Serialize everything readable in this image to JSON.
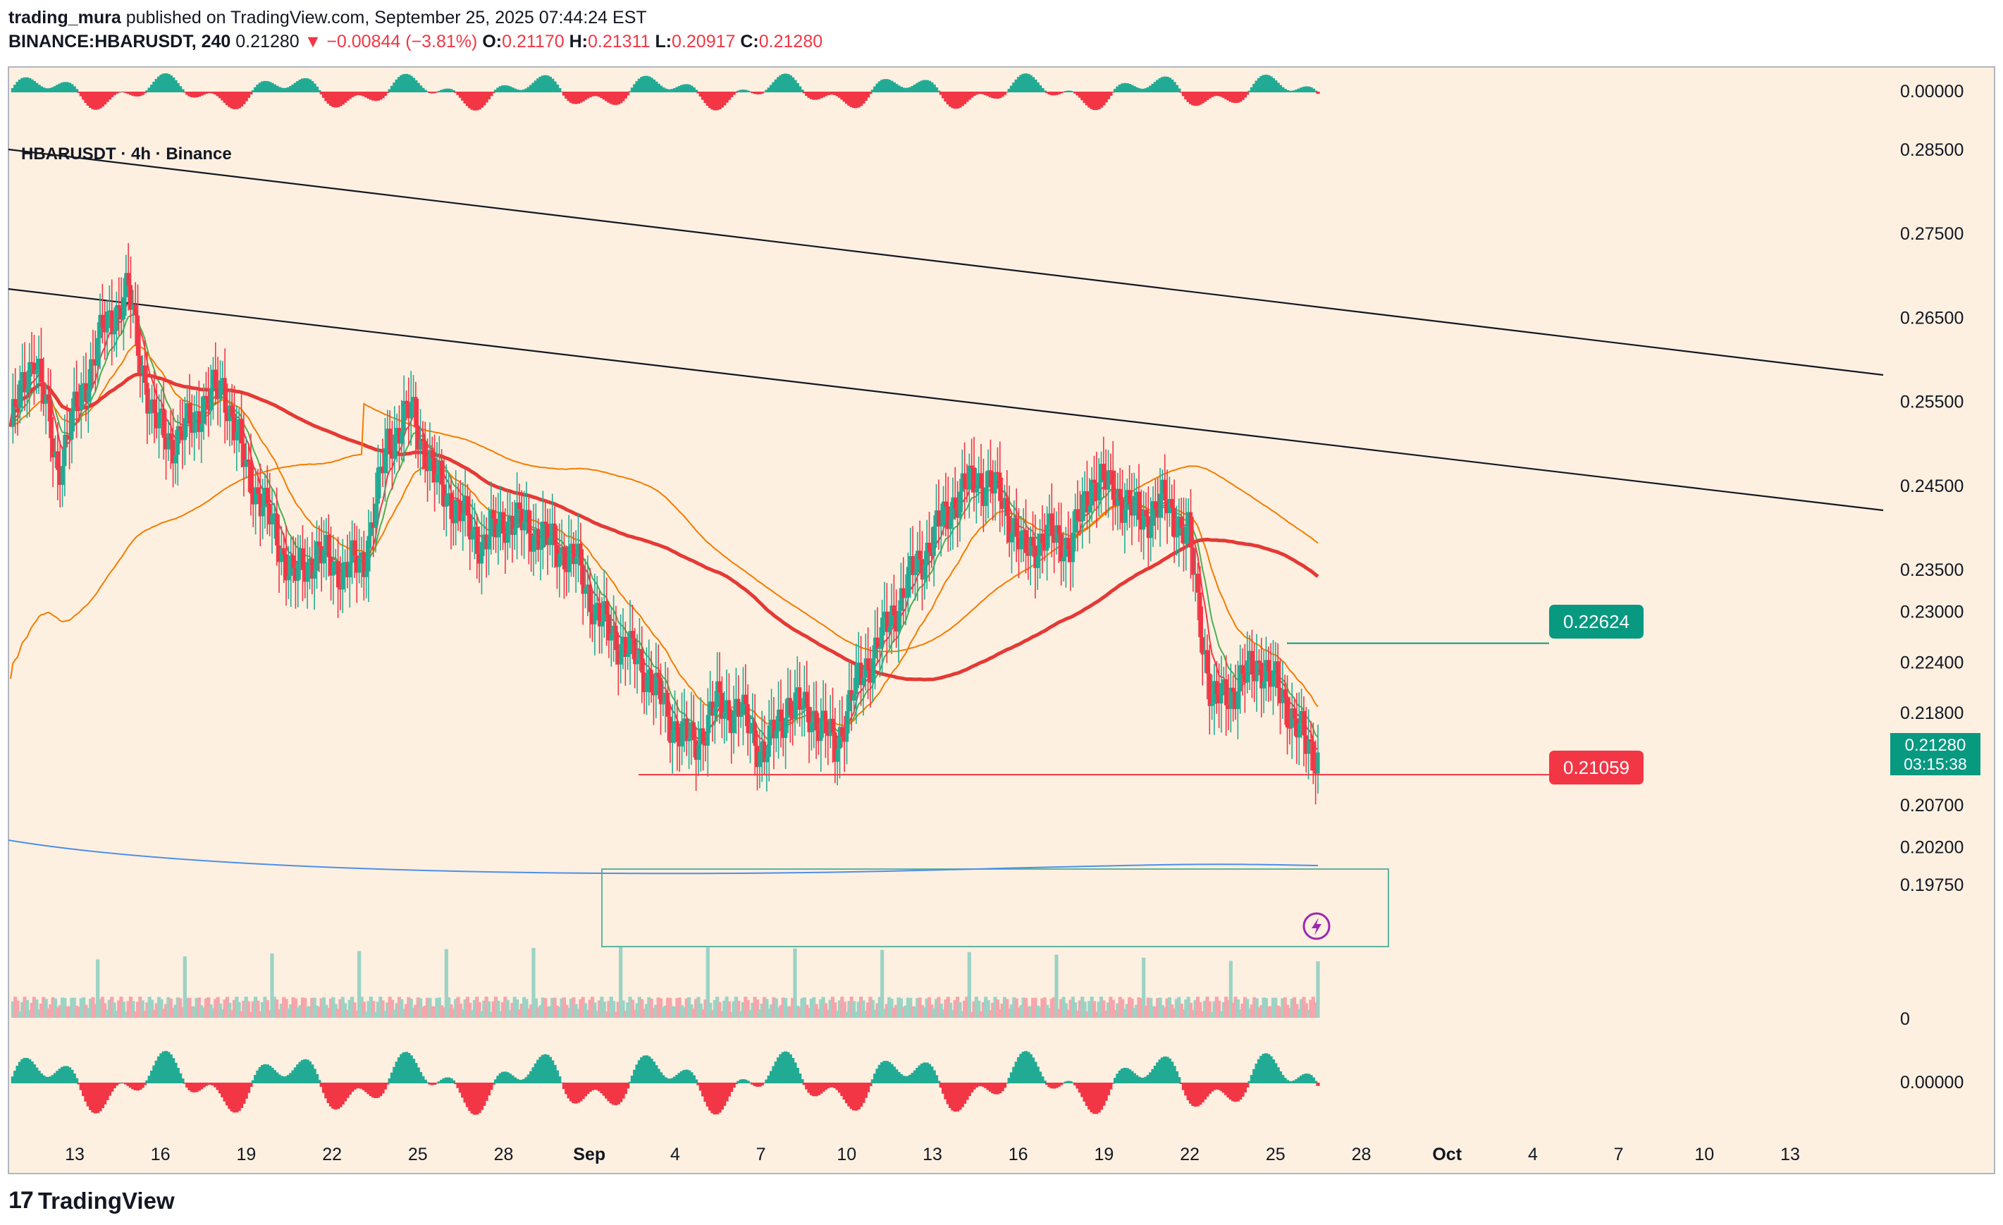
{
  "header": {
    "author": "trading_mura",
    "published_text": "published on TradingView.com, September 25, 2025 07:44:24 EST"
  },
  "ohlc": {
    "symbol": "BINANCE:HBARUSDT, 240",
    "last": "0.21280",
    "arrow": "▼",
    "change": "−0.00844 (−3.81%)",
    "o_label": "O:",
    "o": "0.21170",
    "h_label": "H:",
    "h": "0.21311",
    "l_label": "L:",
    "l": "0.20917",
    "c_label": "C:",
    "c": "0.21280"
  },
  "legend": "HBARUSDT · 4h · Binance",
  "colors": {
    "background": "#fdf0e1",
    "up": "#22ab94",
    "down": "#f23645",
    "ema_fast": "#f23645",
    "ema_orange": "#f57c00",
    "ema_green": "#4caf50",
    "ma_red": "#e53935",
    "ma_blue": "#4d8fe8",
    "ma_teal": "#089981",
    "trendline": "#131722",
    "level_high": "#089981",
    "level_low": "#f23645"
  },
  "price_labels": {
    "current_price": "0.21280",
    "countdown": "03:15:38",
    "level_high": "0.22624",
    "level_low": "0.21059",
    "oscillator_top_zero": "0.00000",
    "volume_zero": "0",
    "oscillator_bottom_zero": "0.00000"
  },
  "footer": {
    "brand": "TradingView",
    "logo_mark": "17"
  },
  "chart_data": {
    "type": "candlestick",
    "symbol": "HBARUSDT",
    "interval": "4h",
    "exchange": "Binance",
    "y_ticks": [
      "0.28500",
      "0.27500",
      "0.26500",
      "0.25500",
      "0.24500",
      "0.23500",
      "0.23000",
      "0.22400",
      "0.21800",
      "0.20700",
      "0.20200",
      "0.19750"
    ],
    "x_ticks": [
      "13",
      "16",
      "19",
      "22",
      "25",
      "28",
      "Sep",
      "4",
      "7",
      "10",
      "13",
      "16",
      "19",
      "22",
      "25",
      "28",
      "Oct",
      "4",
      "7",
      "10",
      "13"
    ],
    "price_path": [
      [
        0,
        0.252
      ],
      [
        2,
        0.261
      ],
      [
        4,
        0.247
      ],
      [
        6,
        0.256
      ],
      [
        8,
        0.264
      ],
      [
        10,
        0.268
      ],
      [
        12,
        0.253
      ],
      [
        14,
        0.25
      ],
      [
        16,
        0.254
      ],
      [
        18,
        0.257
      ],
      [
        20,
        0.247
      ],
      [
        22,
        0.241
      ],
      [
        24,
        0.234
      ],
      [
        26,
        0.237
      ],
      [
        28,
        0.235
      ],
      [
        30,
        0.236
      ],
      [
        32,
        0.25
      ],
      [
        34,
        0.254
      ],
      [
        36,
        0.246
      ],
      [
        38,
        0.242
      ],
      [
        40,
        0.238
      ],
      [
        42,
        0.241
      ],
      [
        44,
        0.24
      ],
      [
        46,
        0.238
      ],
      [
        48,
        0.236
      ],
      [
        50,
        0.229
      ],
      [
        52,
        0.226
      ],
      [
        54,
        0.223
      ],
      [
        56,
        0.217
      ],
      [
        58,
        0.214
      ],
      [
        60,
        0.219
      ],
      [
        62,
        0.218
      ],
      [
        64,
        0.213
      ],
      [
        66,
        0.219
      ],
      [
        68,
        0.218
      ],
      [
        70,
        0.214
      ],
      [
        72,
        0.222
      ],
      [
        74,
        0.227
      ],
      [
        76,
        0.233
      ],
      [
        78,
        0.238
      ],
      [
        80,
        0.243
      ],
      [
        82,
        0.246
      ],
      [
        84,
        0.244
      ],
      [
        86,
        0.237
      ],
      [
        88,
        0.239
      ],
      [
        90,
        0.238
      ],
      [
        92,
        0.246
      ],
      [
        94,
        0.244
      ],
      [
        96,
        0.241
      ],
      [
        98,
        0.243
      ],
      [
        100,
        0.239
      ],
      [
        102,
        0.219
      ],
      [
        104,
        0.221
      ],
      [
        106,
        0.224
      ],
      [
        108,
        0.22
      ],
      [
        110,
        0.214
      ],
      [
        111,
        0.2128
      ]
    ],
    "levels": [
      0.22624,
      0.21059
    ],
    "last_price": 0.2128
  }
}
